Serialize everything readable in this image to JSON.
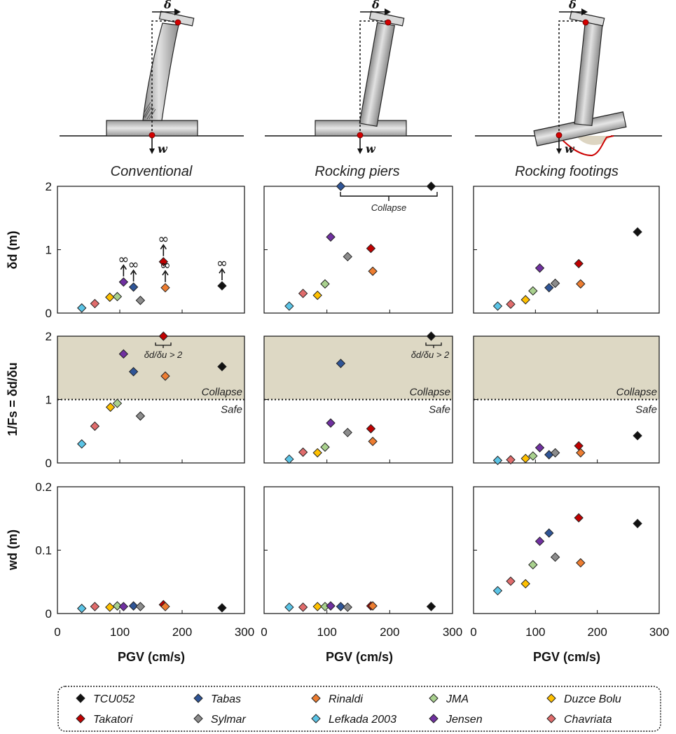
{
  "figure": {
    "delta_label": "δ",
    "w_label": "w",
    "x_axis_label": "PGV (cm/s)",
    "y_axis_labels": [
      "δd (m)",
      "1/Fs = δd/δu",
      "wd (m)"
    ],
    "collapse_label": "Collapse",
    "safe_label": "Safe",
    "ratio_note": "δd/δu > 2",
    "infinity_mark": "∞",
    "columns": [
      {
        "title": "Conventional"
      },
      {
        "title": "Rocking piers"
      },
      {
        "title": "Rocking footings"
      }
    ]
  },
  "legend": {
    "items": [
      {
        "name": "TCU052",
        "color": "#111111"
      },
      {
        "name": "Tabas",
        "color": "#2f5597"
      },
      {
        "name": "Rinaldi",
        "color": "#ed7d31"
      },
      {
        "name": "JMA",
        "color": "#a9d18e"
      },
      {
        "name": "Duzce Bolu",
        "color": "#ffc000"
      },
      {
        "name": "Takatori",
        "color": "#c00000"
      },
      {
        "name": "Sylmar",
        "color": "#8c8c8c"
      },
      {
        "name": "Lefkada 2003",
        "color": "#5bc4e6"
      },
      {
        "name": "Jensen",
        "color": "#7030a0"
      },
      {
        "name": "Chavriata",
        "color": "#e06c6c"
      }
    ]
  },
  "chart_data": [
    {
      "type": "scatter",
      "title": "Conventional",
      "xlabel": "PGV (cm/s)",
      "ylabel": "δd (m)",
      "xlim": [
        0,
        300
      ],
      "ylim": [
        0,
        2
      ],
      "xticks": [
        "0",
        "100",
        "200",
        "300"
      ],
      "yticks": [
        "0",
        "1",
        "2"
      ],
      "points": [
        {
          "series": "Lefkada 2003",
          "x": 39,
          "y": 0.08
        },
        {
          "series": "Chavriata",
          "x": 60,
          "y": 0.15
        },
        {
          "series": "Duzce Bolu",
          "x": 84,
          "y": 0.25
        },
        {
          "series": "JMA",
          "x": 96,
          "y": 0.26
        },
        {
          "series": "Jensen",
          "x": 106,
          "y": 0.49,
          "collapsed": true
        },
        {
          "series": "Tabas",
          "x": 122,
          "y": 0.41,
          "collapsed": true
        },
        {
          "series": "Sylmar",
          "x": 133,
          "y": 0.2
        },
        {
          "series": "Takatori",
          "x": 170,
          "y": 0.81,
          "collapsed": true
        },
        {
          "series": "Rinaldi",
          "x": 173,
          "y": 0.4,
          "collapsed": true
        },
        {
          "series": "TCU052",
          "x": 264,
          "y": 0.43,
          "collapsed": true
        }
      ]
    },
    {
      "type": "scatter",
      "title": "Rocking piers",
      "xlabel": "PGV (cm/s)",
      "ylabel": "δd (m)",
      "xlim": [
        0,
        300
      ],
      "ylim": [
        0,
        2
      ],
      "xticks": [
        "0",
        "100",
        "200",
        "300"
      ],
      "yticks": [
        "0",
        "1",
        "2"
      ],
      "annotation": "Collapse",
      "points": [
        {
          "series": "Lefkada 2003",
          "x": 40,
          "y": 0.11
        },
        {
          "series": "Chavriata",
          "x": 62,
          "y": 0.31
        },
        {
          "series": "Duzce Bolu",
          "x": 85,
          "y": 0.28
        },
        {
          "series": "JMA",
          "x": 97,
          "y": 0.46
        },
        {
          "series": "Jensen",
          "x": 106,
          "y": 1.2
        },
        {
          "series": "Tabas",
          "x": 122,
          "y": 2.0
        },
        {
          "series": "Sylmar",
          "x": 133,
          "y": 0.89
        },
        {
          "series": "Takatori",
          "x": 170,
          "y": 1.02
        },
        {
          "series": "Rinaldi",
          "x": 173,
          "y": 0.66
        },
        {
          "series": "TCU052",
          "x": 266,
          "y": 2.0
        }
      ]
    },
    {
      "type": "scatter",
      "title": "Rocking footings",
      "xlabel": "PGV (cm/s)",
      "ylabel": "δd (m)",
      "xlim": [
        0,
        300
      ],
      "ylim": [
        0,
        2
      ],
      "xticks": [
        "0",
        "100",
        "200",
        "300"
      ],
      "yticks": [
        "0",
        "1",
        "2"
      ],
      "points": [
        {
          "series": "Lefkada 2003",
          "x": 39,
          "y": 0.11
        },
        {
          "series": "Chavriata",
          "x": 60,
          "y": 0.14
        },
        {
          "series": "Duzce Bolu",
          "x": 84,
          "y": 0.21
        },
        {
          "series": "JMA",
          "x": 96,
          "y": 0.35
        },
        {
          "series": "Jensen",
          "x": 107,
          "y": 0.71
        },
        {
          "series": "Tabas",
          "x": 122,
          "y": 0.4
        },
        {
          "series": "Sylmar",
          "x": 132,
          "y": 0.47
        },
        {
          "series": "Takatori",
          "x": 170,
          "y": 0.78
        },
        {
          "series": "Rinaldi",
          "x": 173,
          "y": 0.46
        },
        {
          "series": "TCU052",
          "x": 265,
          "y": 1.28
        }
      ]
    },
    {
      "type": "scatter",
      "title": "Conventional",
      "xlabel": "PGV (cm/s)",
      "ylabel": "1/Fs = δd/δu",
      "xlim": [
        0,
        300
      ],
      "ylim": [
        0,
        2
      ],
      "xticks": [
        "0",
        "100",
        "200",
        "300"
      ],
      "yticks": [
        "0",
        "1",
        "2"
      ],
      "threshold": 1,
      "annotation": "δd/δu > 2",
      "points": [
        {
          "series": "Lefkada 2003",
          "x": 39,
          "y": 0.3
        },
        {
          "series": "Chavriata",
          "x": 60,
          "y": 0.58
        },
        {
          "series": "Duzce Bolu",
          "x": 85,
          "y": 0.88
        },
        {
          "series": "JMA",
          "x": 96,
          "y": 0.94
        },
        {
          "series": "Jensen",
          "x": 106,
          "y": 1.72
        },
        {
          "series": "Tabas",
          "x": 122,
          "y": 1.44
        },
        {
          "series": "Sylmar",
          "x": 133,
          "y": 0.74
        },
        {
          "series": "Takatori",
          "x": 170,
          "y": 2.0
        },
        {
          "series": "Rinaldi",
          "x": 173,
          "y": 1.37
        },
        {
          "series": "TCU052",
          "x": 264,
          "y": 1.52
        }
      ]
    },
    {
      "type": "scatter",
      "title": "Rocking piers",
      "xlabel": "PGV (cm/s)",
      "ylabel": "1/Fs = δd/δu",
      "xlim": [
        0,
        300
      ],
      "ylim": [
        0,
        2
      ],
      "xticks": [
        "0",
        "100",
        "200",
        "300"
      ],
      "yticks": [
        "0",
        "1",
        "2"
      ],
      "threshold": 1,
      "annotation": "δd/δu > 2",
      "points": [
        {
          "series": "Lefkada 2003",
          "x": 40,
          "y": 0.06
        },
        {
          "series": "Chavriata",
          "x": 62,
          "y": 0.17
        },
        {
          "series": "Duzce Bolu",
          "x": 85,
          "y": 0.16
        },
        {
          "series": "JMA",
          "x": 97,
          "y": 0.25
        },
        {
          "series": "Jensen",
          "x": 106,
          "y": 0.63
        },
        {
          "series": "Tabas",
          "x": 122,
          "y": 1.57
        },
        {
          "series": "Sylmar",
          "x": 133,
          "y": 0.48
        },
        {
          "series": "Takatori",
          "x": 170,
          "y": 0.54
        },
        {
          "series": "Rinaldi",
          "x": 173,
          "y": 0.34
        },
        {
          "series": "TCU052",
          "x": 266,
          "y": 2.0
        }
      ]
    },
    {
      "type": "scatter",
      "title": "Rocking footings",
      "xlabel": "PGV (cm/s)",
      "ylabel": "1/Fs = δd/δu",
      "xlim": [
        0,
        300
      ],
      "ylim": [
        0,
        2
      ],
      "xticks": [
        "0",
        "100",
        "200",
        "300"
      ],
      "yticks": [
        "0",
        "1",
        "2"
      ],
      "threshold": 1,
      "points": [
        {
          "series": "Lefkada 2003",
          "x": 39,
          "y": 0.04
        },
        {
          "series": "Chavriata",
          "x": 60,
          "y": 0.05
        },
        {
          "series": "Duzce Bolu",
          "x": 84,
          "y": 0.07
        },
        {
          "series": "JMA",
          "x": 96,
          "y": 0.11
        },
        {
          "series": "Jensen",
          "x": 107,
          "y": 0.24
        },
        {
          "series": "Tabas",
          "x": 122,
          "y": 0.13
        },
        {
          "series": "Sylmar",
          "x": 132,
          "y": 0.16
        },
        {
          "series": "Takatori",
          "x": 170,
          "y": 0.27
        },
        {
          "series": "Rinaldi",
          "x": 173,
          "y": 0.16
        },
        {
          "series": "TCU052",
          "x": 265,
          "y": 0.43
        }
      ]
    },
    {
      "type": "scatter",
      "title": "Conventional",
      "xlabel": "PGV (cm/s)",
      "ylabel": "wd (m)",
      "xlim": [
        0,
        300
      ],
      "ylim": [
        0,
        0.2
      ],
      "xticks": [
        "0",
        "100",
        "200",
        "300"
      ],
      "yticks": [
        "0",
        "0.1",
        "0.2"
      ],
      "points": [
        {
          "series": "Lefkada 2003",
          "x": 39,
          "y": 0.008
        },
        {
          "series": "Chavriata",
          "x": 60,
          "y": 0.011
        },
        {
          "series": "Duzce Bolu",
          "x": 84,
          "y": 0.01
        },
        {
          "series": "JMA",
          "x": 96,
          "y": 0.012
        },
        {
          "series": "Jensen",
          "x": 106,
          "y": 0.011
        },
        {
          "series": "Tabas",
          "x": 122,
          "y": 0.012
        },
        {
          "series": "Sylmar",
          "x": 133,
          "y": 0.011
        },
        {
          "series": "Takatori",
          "x": 170,
          "y": 0.014
        },
        {
          "series": "Rinaldi",
          "x": 173,
          "y": 0.011
        },
        {
          "series": "TCU052",
          "x": 264,
          "y": 0.009
        }
      ]
    },
    {
      "type": "scatter",
      "title": "Rocking piers",
      "xlabel": "PGV (cm/s)",
      "ylabel": "wd (m)",
      "xlim": [
        0,
        300
      ],
      "ylim": [
        0,
        0.2
      ],
      "xticks": [
        "0",
        "100",
        "200",
        "300"
      ],
      "yticks": [
        "0",
        "0.1",
        "0.2"
      ],
      "points": [
        {
          "series": "Lefkada 2003",
          "x": 40,
          "y": 0.01
        },
        {
          "series": "Chavriata",
          "x": 62,
          "y": 0.01
        },
        {
          "series": "Duzce Bolu",
          "x": 85,
          "y": 0.011
        },
        {
          "series": "JMA",
          "x": 97,
          "y": 0.011
        },
        {
          "series": "Jensen",
          "x": 106,
          "y": 0.012
        },
        {
          "series": "Tabas",
          "x": 122,
          "y": 0.011
        },
        {
          "series": "Sylmar",
          "x": 133,
          "y": 0.01
        },
        {
          "series": "Takatori",
          "x": 170,
          "y": 0.012
        },
        {
          "series": "Rinaldi",
          "x": 173,
          "y": 0.012
        },
        {
          "series": "TCU052",
          "x": 266,
          "y": 0.011
        }
      ]
    },
    {
      "type": "scatter",
      "title": "Rocking footings",
      "xlabel": "PGV (cm/s)",
      "ylabel": "wd (m)",
      "xlim": [
        0,
        300
      ],
      "ylim": [
        0,
        0.2
      ],
      "xticks": [
        "0",
        "100",
        "200",
        "300"
      ],
      "yticks": [
        "0",
        "0.1",
        "0.2"
      ],
      "points": [
        {
          "series": "Lefkada 2003",
          "x": 39,
          "y": 0.036
        },
        {
          "series": "Chavriata",
          "x": 60,
          "y": 0.051
        },
        {
          "series": "Duzce Bolu",
          "x": 84,
          "y": 0.047
        },
        {
          "series": "JMA",
          "x": 96,
          "y": 0.077
        },
        {
          "series": "Jensen",
          "x": 107,
          "y": 0.114
        },
        {
          "series": "Tabas",
          "x": 122,
          "y": 0.127
        },
        {
          "series": "Sylmar",
          "x": 132,
          "y": 0.089
        },
        {
          "series": "Takatori",
          "x": 170,
          "y": 0.151
        },
        {
          "series": "Rinaldi",
          "x": 173,
          "y": 0.08
        },
        {
          "series": "TCU052",
          "x": 265,
          "y": 0.142
        }
      ]
    }
  ]
}
